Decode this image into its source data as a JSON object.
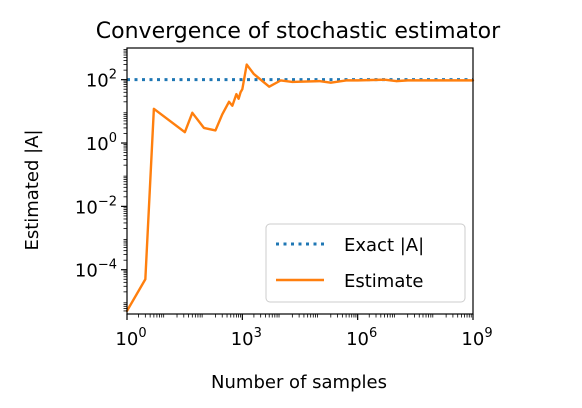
{
  "chart_data": {
    "type": "line",
    "title": "Convergence of stochastic estimator",
    "xlabel": "Number of samples",
    "ylabel": "Estimated |A|",
    "xscale": "log",
    "yscale": "log",
    "xlim": [
      1,
      1000000000
    ],
    "ylim": [
      4e-06,
      1000
    ],
    "xticks": [
      {
        "base": "10",
        "exp": "0"
      },
      {
        "base": "10",
        "exp": "3"
      },
      {
        "base": "10",
        "exp": "6"
      },
      {
        "base": "10",
        "exp": "9"
      }
    ],
    "yticks": [
      {
        "base": "10",
        "exp": "2"
      },
      {
        "base": "10",
        "exp": "0"
      },
      {
        "base": "10",
        "exp": "−2"
      },
      {
        "base": "10",
        "exp": "−4"
      }
    ],
    "xtick_values": [
      1,
      1000,
      1000000,
      1000000000
    ],
    "ytick_values": [
      100,
      1,
      0.01,
      0.0001
    ],
    "grid": false,
    "legend_position": "lower-right",
    "series": [
      {
        "name": "Exact |A|",
        "style": "dotted",
        "color": "#1f77b4",
        "x": [
          1,
          1000000000
        ],
        "y": [
          100,
          100
        ]
      },
      {
        "name": "Estimate",
        "style": "solid",
        "color": "#ff7f0e",
        "x": [
          1,
          3,
          5,
          32,
          50,
          100,
          200,
          300,
          450,
          550,
          700,
          800,
          900,
          1000,
          1300,
          2000,
          5000,
          10000,
          20000,
          100000,
          200000,
          500000,
          1000000,
          5000000,
          10000000,
          20000000,
          100000000,
          1000000000
        ],
        "y": [
          5e-06,
          5e-05,
          12,
          2.2,
          9,
          3,
          2.5,
          8,
          20,
          15,
          35,
          25,
          40,
          50,
          300,
          150,
          60,
          95,
          85,
          90,
          80,
          95,
          95,
          100,
          90,
          95,
          95,
          95
        ]
      }
    ]
  }
}
